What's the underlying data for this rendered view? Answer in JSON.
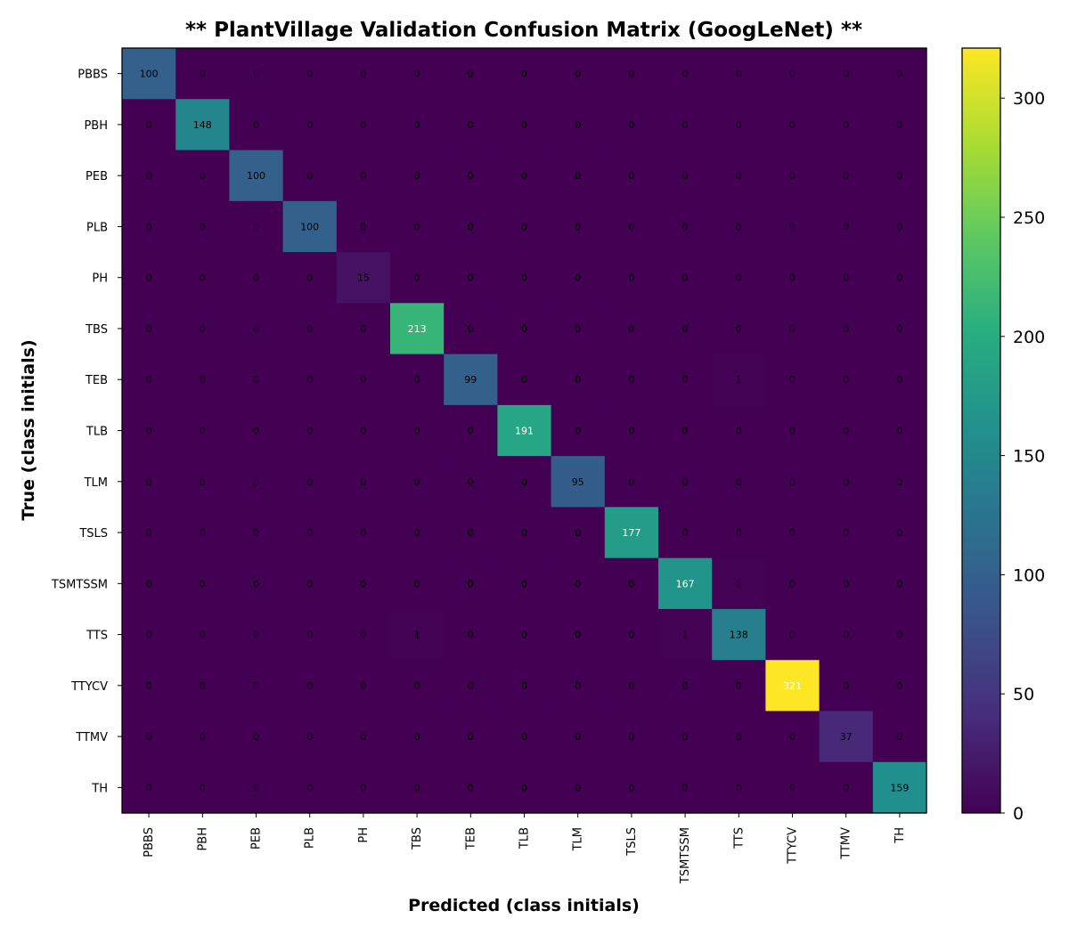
{
  "chart_data": {
    "type": "heatmap",
    "title": "** PlantVillage Validation Confusion Matrix (GoogLeNet) **",
    "xlabel": "Predicted (class initials)",
    "ylabel": "True (class initials)",
    "classes": [
      "PBBS",
      "PBH",
      "PEB",
      "PLB",
      "PH",
      "TBS",
      "TEB",
      "TLB",
      "TLM",
      "TSLS",
      "TSMTSSM",
      "TTS",
      "TTYCV",
      "TTMV",
      "TH"
    ],
    "matrix": [
      [
        100,
        0,
        0,
        0,
        0,
        0,
        0,
        0,
        0,
        0,
        0,
        0,
        0,
        0,
        0
      ],
      [
        0,
        148,
        0,
        0,
        0,
        0,
        0,
        0,
        0,
        0,
        0,
        0,
        0,
        0,
        0
      ],
      [
        0,
        0,
        100,
        0,
        0,
        0,
        0,
        0,
        0,
        0,
        0,
        0,
        0,
        0,
        0
      ],
      [
        0,
        0,
        0,
        100,
        0,
        0,
        0,
        0,
        0,
        0,
        0,
        0,
        0,
        0,
        0
      ],
      [
        0,
        0,
        0,
        0,
        15,
        0,
        0,
        0,
        0,
        0,
        0,
        0,
        0,
        0,
        0
      ],
      [
        0,
        0,
        0,
        0,
        0,
        213,
        0,
        0,
        0,
        0,
        0,
        0,
        0,
        0,
        0
      ],
      [
        0,
        0,
        0,
        0,
        0,
        0,
        99,
        0,
        0,
        0,
        0,
        1,
        0,
        0,
        0
      ],
      [
        0,
        0,
        0,
        0,
        0,
        0,
        0,
        191,
        0,
        0,
        0,
        0,
        0,
        0,
        0
      ],
      [
        0,
        0,
        0,
        0,
        0,
        0,
        0,
        0,
        95,
        0,
        0,
        0,
        0,
        0,
        0
      ],
      [
        0,
        0,
        0,
        0,
        0,
        0,
        0,
        0,
        0,
        177,
        0,
        0,
        0,
        0,
        0
      ],
      [
        0,
        0,
        0,
        0,
        0,
        0,
        0,
        0,
        0,
        0,
        167,
        1,
        0,
        0,
        0
      ],
      [
        0,
        0,
        0,
        0,
        0,
        1,
        0,
        0,
        0,
        0,
        1,
        138,
        0,
        0,
        0
      ],
      [
        0,
        0,
        0,
        0,
        0,
        0,
        0,
        0,
        0,
        0,
        0,
        0,
        321,
        0,
        0
      ],
      [
        0,
        0,
        0,
        0,
        0,
        0,
        0,
        0,
        0,
        0,
        0,
        0,
        0,
        37,
        0
      ],
      [
        0,
        0,
        0,
        0,
        0,
        0,
        0,
        0,
        0,
        0,
        0,
        0,
        0,
        0,
        159
      ]
    ],
    "colormap": "viridis",
    "colorbar": {
      "range": [
        0,
        321
      ],
      "ticks": [
        0,
        50,
        100,
        150,
        200,
        250,
        300
      ]
    },
    "grid": false
  }
}
